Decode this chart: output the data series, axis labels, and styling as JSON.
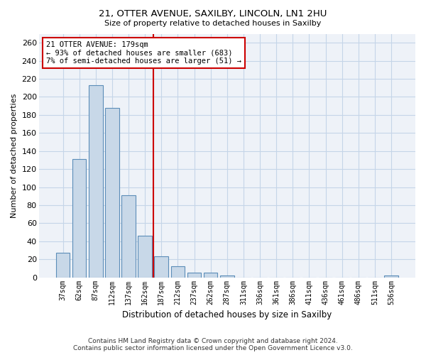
{
  "title1": "21, OTTER AVENUE, SAXILBY, LINCOLN, LN1 2HU",
  "title2": "Size of property relative to detached houses in Saxilby",
  "xlabel": "Distribution of detached houses by size in Saxilby",
  "ylabel": "Number of detached properties",
  "bar_color": "#c8d8e8",
  "bar_edge_color": "#5b8db8",
  "vline_color": "#cc0000",
  "annotation_line1": "21 OTTER AVENUE: 179sqm",
  "annotation_line2": "← 93% of detached houses are smaller (683)",
  "annotation_line3": "7% of semi-detached houses are larger (51) →",
  "annotation_box_color": "#ffffff",
  "annotation_box_edge": "#cc0000",
  "categories": [
    "37sqm",
    "62sqm",
    "87sqm",
    "112sqm",
    "137sqm",
    "162sqm",
    "187sqm",
    "212sqm",
    "237sqm",
    "262sqm",
    "287sqm",
    "311sqm",
    "336sqm",
    "361sqm",
    "386sqm",
    "411sqm",
    "436sqm",
    "461sqm",
    "486sqm",
    "511sqm",
    "536sqm"
  ],
  "bar_heights": [
    27,
    131,
    213,
    188,
    91,
    46,
    23,
    12,
    5,
    5,
    2,
    0,
    0,
    0,
    0,
    0,
    0,
    0,
    0,
    0,
    2
  ],
  "ylim": [
    0,
    270
  ],
  "yticks": [
    0,
    20,
    40,
    60,
    80,
    100,
    120,
    140,
    160,
    180,
    200,
    220,
    240,
    260
  ],
  "bg_color": "#eef2f8",
  "grid_color": "#c5d5e8",
  "footer": "Contains HM Land Registry data © Crown copyright and database right 2024.\nContains public sector information licensed under the Open Government Licence v3.0.",
  "bar_width": 0.85,
  "vline_idx": 6
}
